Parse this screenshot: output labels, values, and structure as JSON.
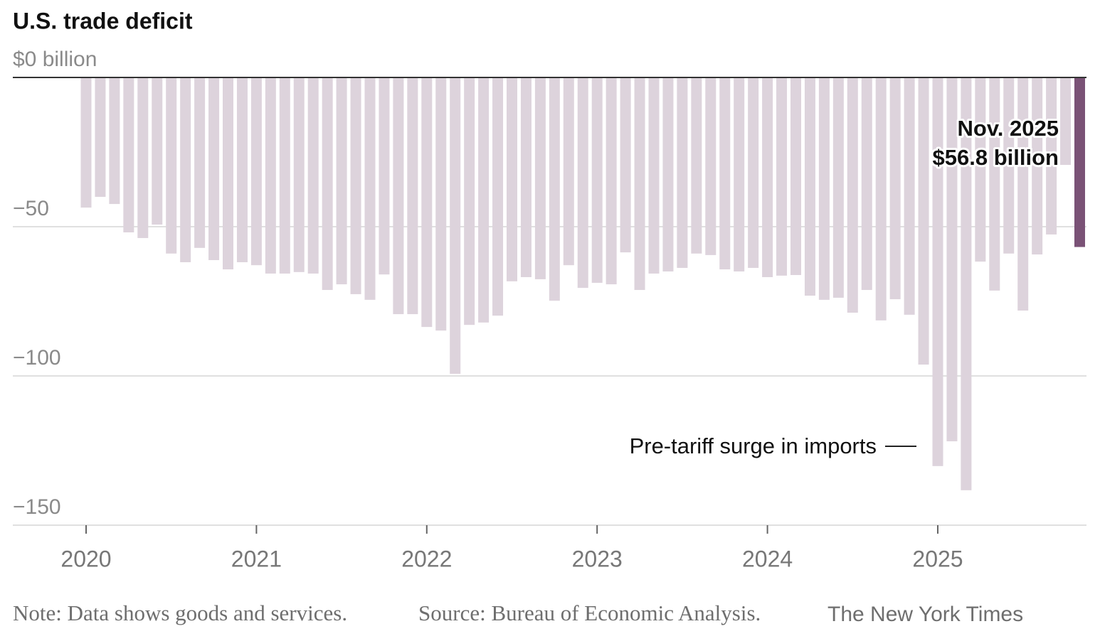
{
  "chart_data": {
    "type": "bar",
    "title": "U.S. trade deficit",
    "categories": [
      "2020",
      null,
      null,
      null,
      null,
      null,
      null,
      null,
      null,
      null,
      null,
      null,
      "2021",
      null,
      null,
      null,
      null,
      null,
      null,
      null,
      null,
      null,
      null,
      null,
      "2022",
      null,
      null,
      null,
      null,
      null,
      null,
      null,
      null,
      null,
      null,
      null,
      "2023",
      null,
      null,
      null,
      null,
      null,
      null,
      null,
      null,
      null,
      null,
      null,
      "2024",
      null,
      null,
      null,
      null,
      null,
      null,
      null,
      null,
      null,
      null,
      null,
      "2025",
      null,
      null,
      null,
      null,
      null,
      null,
      null,
      null,
      null,
      null
    ],
    "values": [
      -43.6,
      -40,
      -42.4,
      -51.9,
      -53.8,
      -49.3,
      -59,
      -61.9,
      -57.1,
      -61.2,
      -64.3,
      -61.9,
      -62.9,
      -65.7,
      -65.7,
      -65.2,
      -65.7,
      -71.2,
      -69.3,
      -72.6,
      -74.5,
      -66,
      -79.3,
      -79.3,
      -83.6,
      -84.8,
      -99.3,
      -82.9,
      -82.1,
      -79.8,
      -68.3,
      -66.9,
      -67.6,
      -74.8,
      -62.9,
      -70.5,
      -68.8,
      -69.3,
      -58.6,
      -71.2,
      -65.7,
      -65,
      -63.8,
      -59,
      -59.5,
      -64.3,
      -65,
      -63.8,
      -66.9,
      -66.4,
      -66.2,
      -73.1,
      -74.5,
      -73.8,
      -78.8,
      -71.2,
      -81.4,
      -74.3,
      -79.5,
      -96.2,
      -130.2,
      -121.9,
      -138.3,
      -61.7,
      -71.4,
      -59,
      -78.1,
      -59.3,
      -52.6,
      -29.3,
      -56.8
    ],
    "color": "#ddd3dc",
    "highlight_index": 70,
    "highlight_color": "#7a5276",
    "ylim": [
      -150,
      0
    ],
    "yticks": [
      {
        "value": 0,
        "label": "$0 billion"
      },
      {
        "value": -50,
        "label": "−50"
      },
      {
        "value": -100,
        "label": "−100"
      },
      {
        "value": -150,
        "label": "−150"
      }
    ],
    "grid": true,
    "annotations": [
      {
        "title": "Nov. 2025",
        "text": "$56.8 billion"
      },
      {
        "text": "Pre-tariff surge in imports"
      }
    ],
    "note": "Note: Data shows goods and services.",
    "source": "Source: Bureau of Economic Analysis.",
    "credit": "The New York Times"
  }
}
